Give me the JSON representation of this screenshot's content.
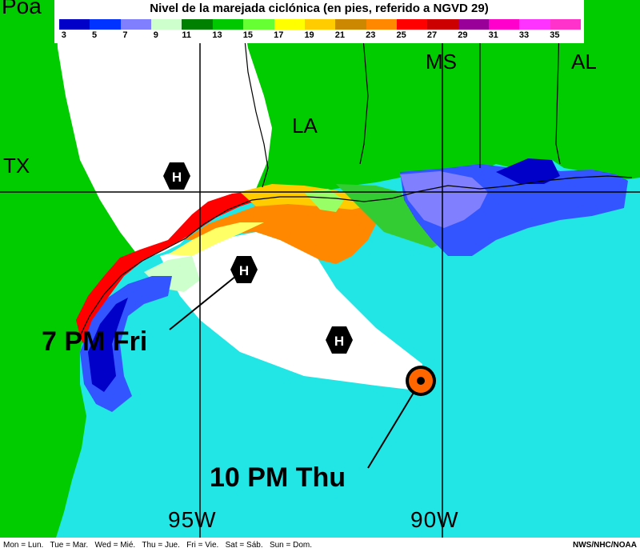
{
  "title": "Nivel de la marejada ciclónica (en pies, referido a NGVD 29)",
  "legend": {
    "colors": [
      "#0000c8",
      "#0033ff",
      "#8080ff",
      "#ccffcc",
      "#008000",
      "#00c800",
      "#66ff33",
      "#ffff00",
      "#ffcc00",
      "#cc8800",
      "#ff8800",
      "#ff0000",
      "#cc0000",
      "#990099",
      "#ff00cc",
      "#ff33ff",
      "#ff33cc"
    ],
    "ticks": [
      "3",
      "5",
      "7",
      "9",
      "11",
      "13",
      "15",
      "17",
      "19",
      "21",
      "23",
      "25",
      "27",
      "29",
      "31",
      "33",
      "35"
    ]
  },
  "map": {
    "states": [
      "TX",
      "LA",
      "MS",
      "AL"
    ],
    "partial_top_label": "Poa",
    "storm_labels": {
      "forecast_friday": "7 PM Fri",
      "current_thursday": "10 PM Thu"
    },
    "hurricane_symbol": "H",
    "longitude_labels": [
      "95W",
      "90W"
    ],
    "colors": {
      "land": "#00cc00",
      "water": "#22e6e6",
      "cone": "#ffffff",
      "grid": "#000000",
      "storm_center": "#ff6600"
    }
  },
  "footer": {
    "days": "Mon = Lun.   Tue = Mar.   Wed = Mié.   Thu = Jue.   Fri = Vie.   Sat = Sáb.   Sun = Dom.",
    "credit": "NWS/NHC/NOAA"
  }
}
